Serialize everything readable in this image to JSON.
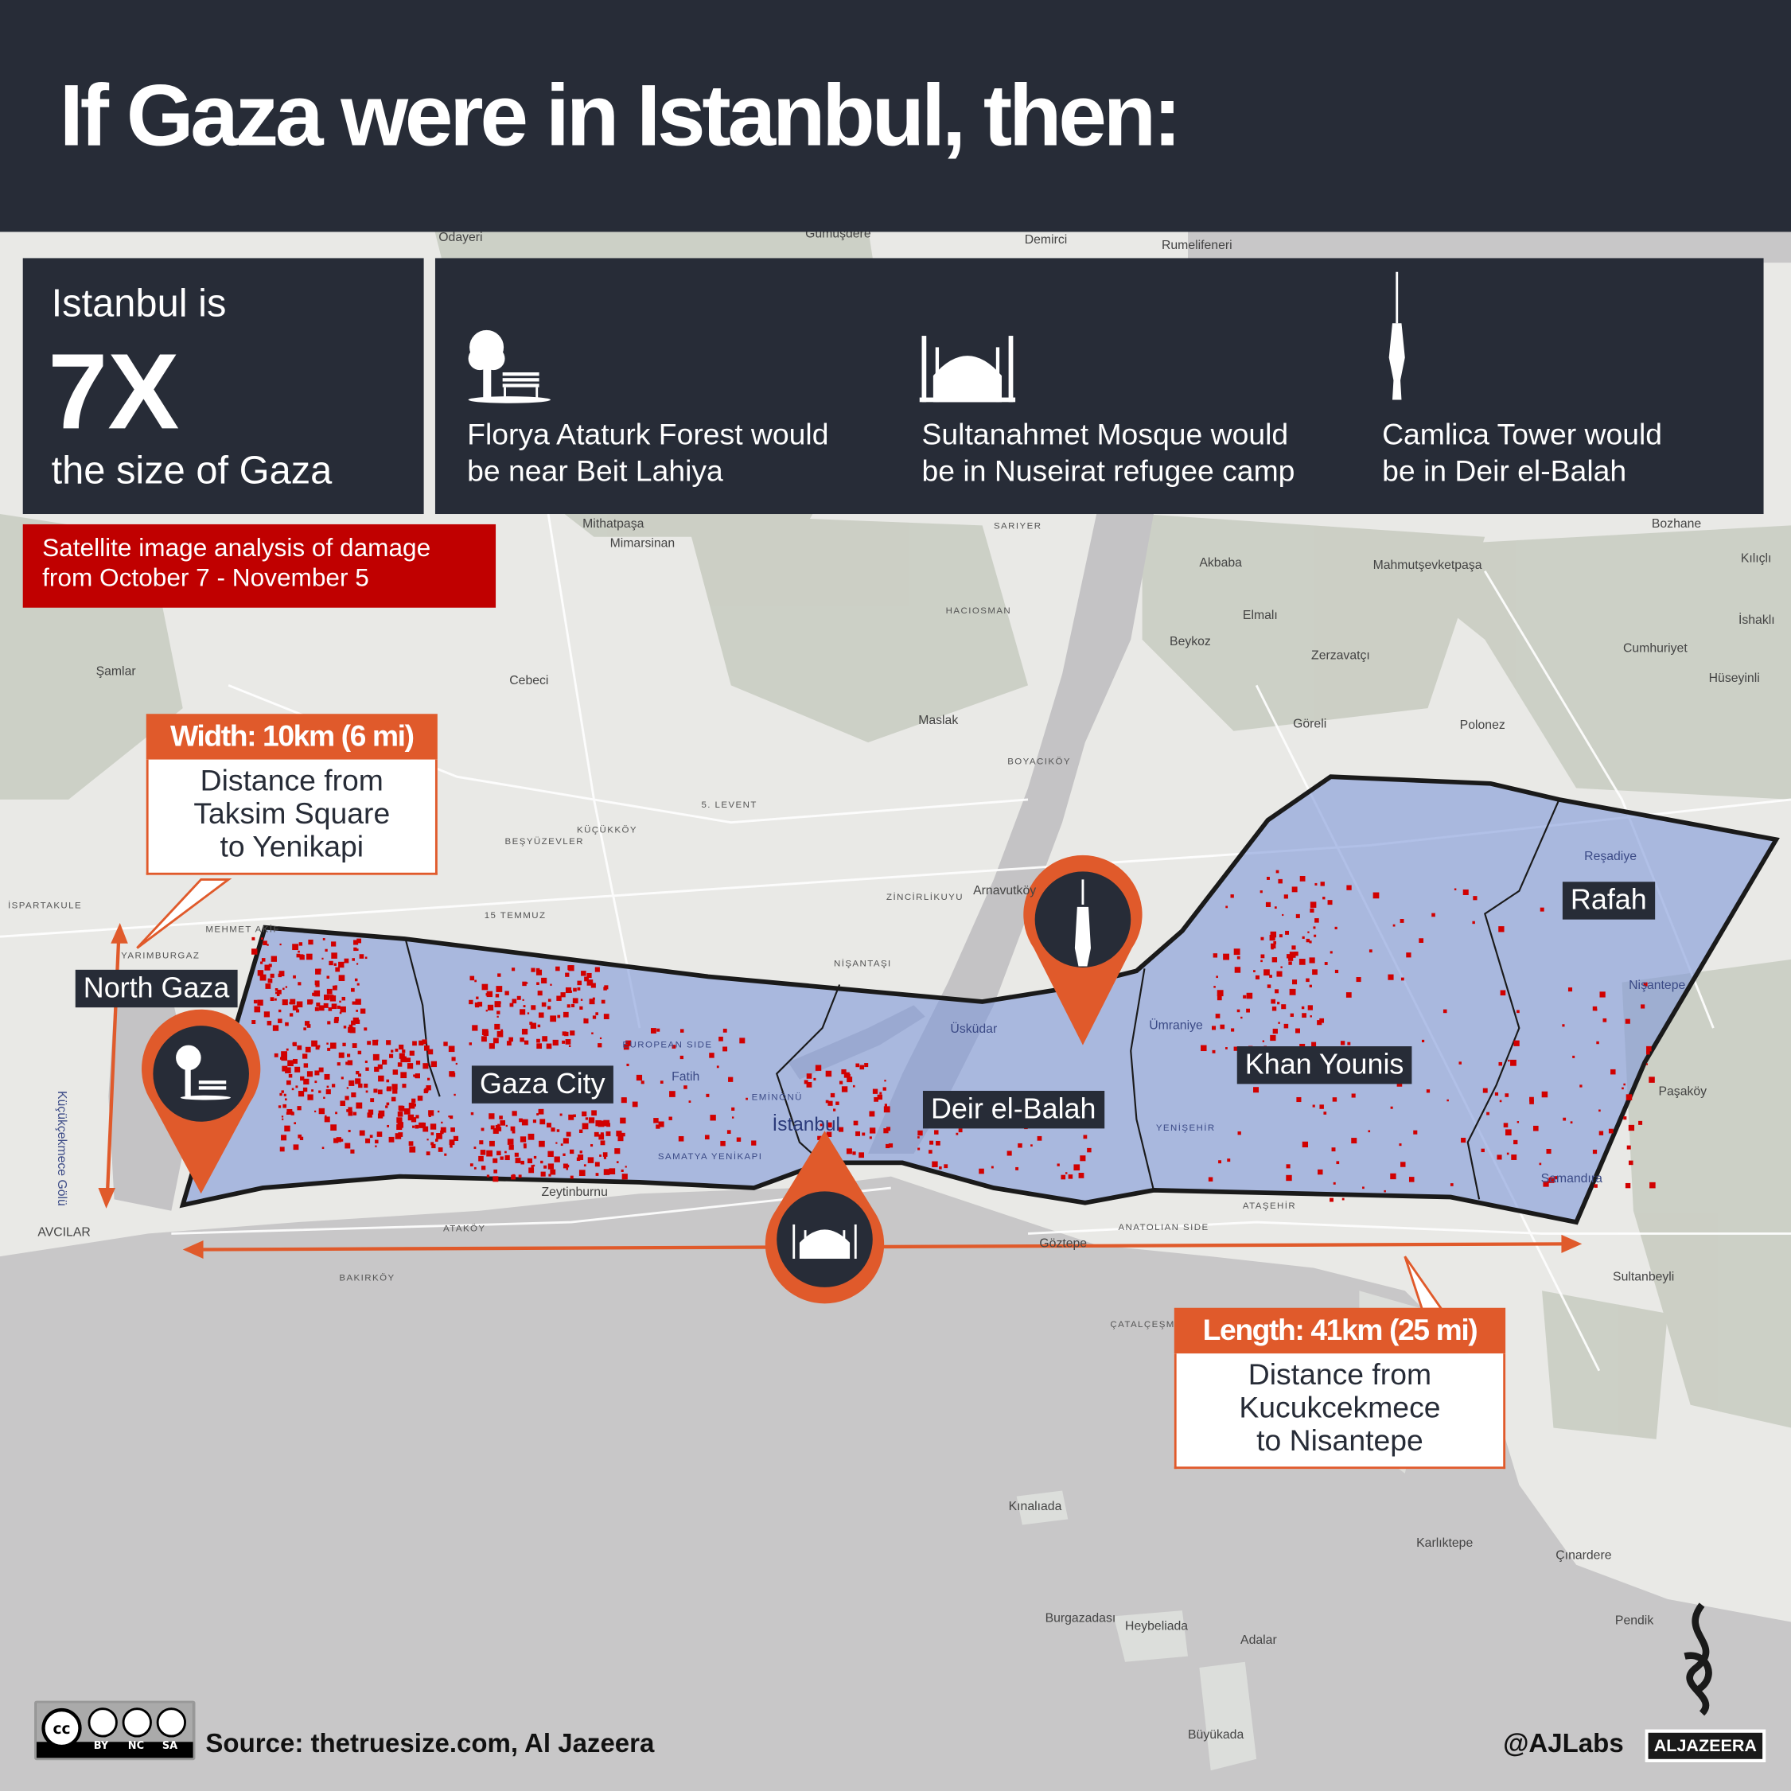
{
  "header": {
    "title": "If Gaza were in Istanbul, then:"
  },
  "stat": {
    "line1": "Istanbul is",
    "big": "7X",
    "line2": "the size of Gaza"
  },
  "comparisons": [
    {
      "icon": "tree-bench-icon",
      "line1": "Florya Ataturk Forest would",
      "line2": "be near Beit Lahiya"
    },
    {
      "icon": "mosque-icon",
      "line1": "Sultanahmet Mosque would",
      "line2": "be in Nuseirat refugee camp"
    },
    {
      "icon": "tower-icon",
      "line1": "Camlica Tower would",
      "line2": "be in Deir el-Balah"
    }
  ],
  "damage_note": {
    "line1": "Satellite image analysis of damage",
    "line2": "from October 7 - November 5"
  },
  "width_callout": {
    "header": "Width: 10km (6 mi)",
    "line1": "Distance from",
    "line2": "Taksim Square",
    "line3": "to Yenikapi"
  },
  "length_callout": {
    "header": "Length: 41km (25 mi)",
    "line1": "Distance from",
    "line2": "Kucukcekmece",
    "line3": "to Nisantepe"
  },
  "gaza_labels": {
    "north": "North Gaza",
    "city": "Gaza City",
    "deir": "Deir el-Balah",
    "khan": "Khan Younis",
    "rafah": "Rafah"
  },
  "map_labels": [
    "Odayeri",
    "Demirci",
    "Rumelifeneri",
    "Gümüşdere",
    "Mithatpaşa",
    "Mimarsinan",
    "SARIYER",
    "Akbaba",
    "Mahmutşevketpaşa",
    "Bozhane",
    "Kılıçlı",
    "İshaklı",
    "Cumhuriyet",
    "Hüseyinli",
    "Elmalı",
    "Beykoz",
    "Zerzavatçı",
    "HACIOSMAN",
    "Şamlar",
    "Cebeci",
    "Maslak",
    "Göreli",
    "Polonez",
    "BOYACIKÖY",
    "5. LEVENT",
    "KÜÇÜKKÖY",
    "BEŞYÜZEVLER",
    "İSPARTAKULE",
    "15 TEMMUZ",
    "ZİNCİRLİKUYU",
    "Arnavutköy",
    "NİŞANTAŞI",
    "Üsküdar",
    "Ümraniye",
    "Reşadiye",
    "Nişantepe",
    "Paşaköy",
    "Samandıra",
    "Fatih",
    "EMİNÖNÜ",
    "İstanbul",
    "Zeytinburnu",
    "ATAKÖY",
    "AVCILAR",
    "BAKIRKÖY",
    "Göztepe",
    "ATAŞEHİR",
    "ANATOLIAN SIDE",
    "Sultanbeyli",
    "ÇATALÇEŞME",
    "Kınalıada",
    "Karlıktepe",
    "Çınardere",
    "Pendik",
    "Burgazadası",
    "Heybeliada",
    "Adalar",
    "Büyükada",
    "Küçükçekmece Gölü",
    "YENİŞEHİR",
    "SAMATYA YENİKAPI",
    "EUROPEAN SIDE",
    "MEHMET AKİF",
    "YARIMBURGAZ"
  ],
  "footer": {
    "source": "Source:  thetruesize.com, Al Jazeera",
    "handle": "@AJLabs",
    "logo": "ALJAZEERA",
    "license": [
      "BY",
      "NC",
      "SA"
    ]
  },
  "colors": {
    "header_bg": "#272c37",
    "accent": "#e05a2b",
    "damage": "#d10000",
    "gaza_fill": "#7f97d8",
    "note_bg": "#c00000"
  }
}
